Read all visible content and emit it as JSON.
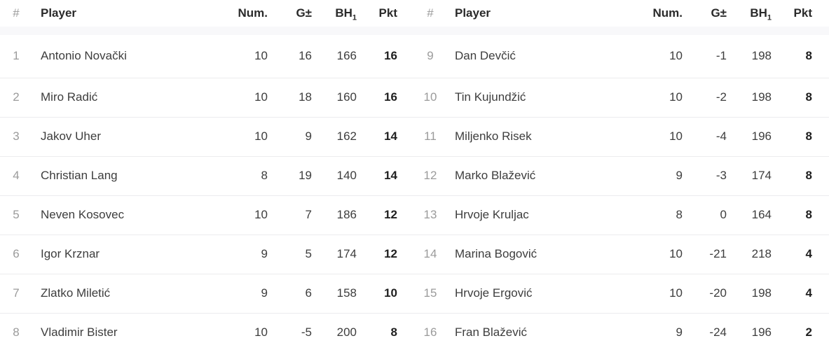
{
  "columns": {
    "rank": "#",
    "player": "Player",
    "num": "Num.",
    "goal_diff": "G±",
    "bh_label": "BH",
    "bh_sub": "1",
    "pkt": "Pkt"
  },
  "tables": [
    {
      "rows": [
        {
          "rank": "1",
          "player": "Antonio Novački",
          "num": "10",
          "gd": "16",
          "bh": "166",
          "pkt": "16"
        },
        {
          "rank": "2",
          "player": "Miro Radić",
          "num": "10",
          "gd": "18",
          "bh": "160",
          "pkt": "16"
        },
        {
          "rank": "3",
          "player": "Jakov Uher",
          "num": "10",
          "gd": "9",
          "bh": "162",
          "pkt": "14"
        },
        {
          "rank": "4",
          "player": "Christian Lang",
          "num": "8",
          "gd": "19",
          "bh": "140",
          "pkt": "14"
        },
        {
          "rank": "5",
          "player": "Neven Kosovec",
          "num": "10",
          "gd": "7",
          "bh": "186",
          "pkt": "12"
        },
        {
          "rank": "6",
          "player": "Igor Krznar",
          "num": "9",
          "gd": "5",
          "bh": "174",
          "pkt": "12"
        },
        {
          "rank": "7",
          "player": "Zlatko Miletić",
          "num": "9",
          "gd": "6",
          "bh": "158",
          "pkt": "10"
        },
        {
          "rank": "8",
          "player": "Vladimir Bister",
          "num": "10",
          "gd": "-5",
          "bh": "200",
          "pkt": "8"
        }
      ]
    },
    {
      "rows": [
        {
          "rank": "9",
          "player": "Dan Devčić",
          "num": "10",
          "gd": "-1",
          "bh": "198",
          "pkt": "8"
        },
        {
          "rank": "10",
          "player": "Tin Kujundžić",
          "num": "10",
          "gd": "-2",
          "bh": "198",
          "pkt": "8"
        },
        {
          "rank": "11",
          "player": "Miljenko Risek",
          "num": "10",
          "gd": "-4",
          "bh": "196",
          "pkt": "8"
        },
        {
          "rank": "12",
          "player": "Marko Blažević",
          "num": "9",
          "gd": "-3",
          "bh": "174",
          "pkt": "8"
        },
        {
          "rank": "13",
          "player": "Hrvoje Kruljac",
          "num": "8",
          "gd": "0",
          "bh": "164",
          "pkt": "8"
        },
        {
          "rank": "14",
          "player": "Marina Bogović",
          "num": "10",
          "gd": "-21",
          "bh": "218",
          "pkt": "4"
        },
        {
          "rank": "15",
          "player": "Hrvoje Ergović",
          "num": "10",
          "gd": "-20",
          "bh": "198",
          "pkt": "4"
        },
        {
          "rank": "16",
          "player": "Fran Blažević",
          "num": "9",
          "gd": "-24",
          "bh": "196",
          "pkt": "2"
        }
      ]
    }
  ],
  "colors": {
    "background": "#ffffff",
    "header_text": "#2a2a2a",
    "body_text": "#3d3d3d",
    "rank_text": "#9b9b9b",
    "points_text": "#1f1f1f",
    "row_divider": "#ececee",
    "header_divider": "#ebebee",
    "header_band": "#f8f8fa"
  }
}
